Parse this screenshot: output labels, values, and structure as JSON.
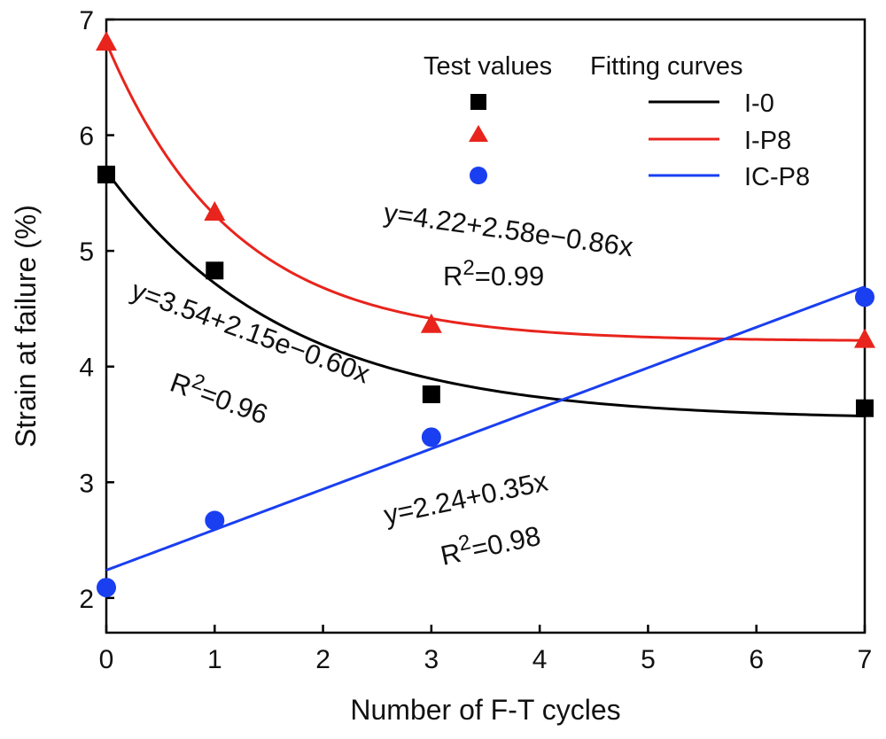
{
  "chart_data": {
    "type": "scatter",
    "title": "",
    "xlabel": "Number of F-T cycles",
    "ylabel": "Strain at failure (%)",
    "xlim": [
      0,
      7
    ],
    "ylim": [
      1.7,
      7.0
    ],
    "xticks": [
      0,
      1,
      2,
      3,
      4,
      5,
      6,
      7
    ],
    "yticks": [
      2,
      3,
      4,
      5,
      6,
      7
    ],
    "grid": false,
    "legend": {
      "position": "top-right",
      "header_points": "Test values",
      "header_curves": "Fitting curves"
    },
    "series": [
      {
        "name": "I-0",
        "color": "#000000",
        "marker": "square",
        "x": [
          0,
          1,
          3,
          7
        ],
        "y": [
          5.66,
          4.83,
          3.76,
          3.64
        ],
        "fit": {
          "type": "exp",
          "a": 3.54,
          "b": 2.15,
          "c": -0.6
        },
        "equation": "y=3.54+2.15e−0.60x",
        "r2": "R²=0.96"
      },
      {
        "name": "I-P8",
        "color": "#e8241c",
        "marker": "triangle",
        "x": [
          0,
          1,
          3,
          7
        ],
        "y": [
          6.8,
          5.33,
          4.36,
          4.23
        ],
        "fit": {
          "type": "exp",
          "a": 4.22,
          "b": 2.58,
          "c": -0.86
        },
        "equation": "y=4.22+2.58e−0.86x",
        "r2": "R²=0.99"
      },
      {
        "name": "IC-P8",
        "color": "#1a3ff0",
        "marker": "circle",
        "x": [
          0,
          1,
          3,
          7
        ],
        "y": [
          2.09,
          2.67,
          3.39,
          4.6
        ],
        "fit": {
          "type": "linear",
          "a": 2.24,
          "b": 0.35
        },
        "equation": "y=2.24+0.35x",
        "r2": "R²=0.98"
      }
    ]
  }
}
